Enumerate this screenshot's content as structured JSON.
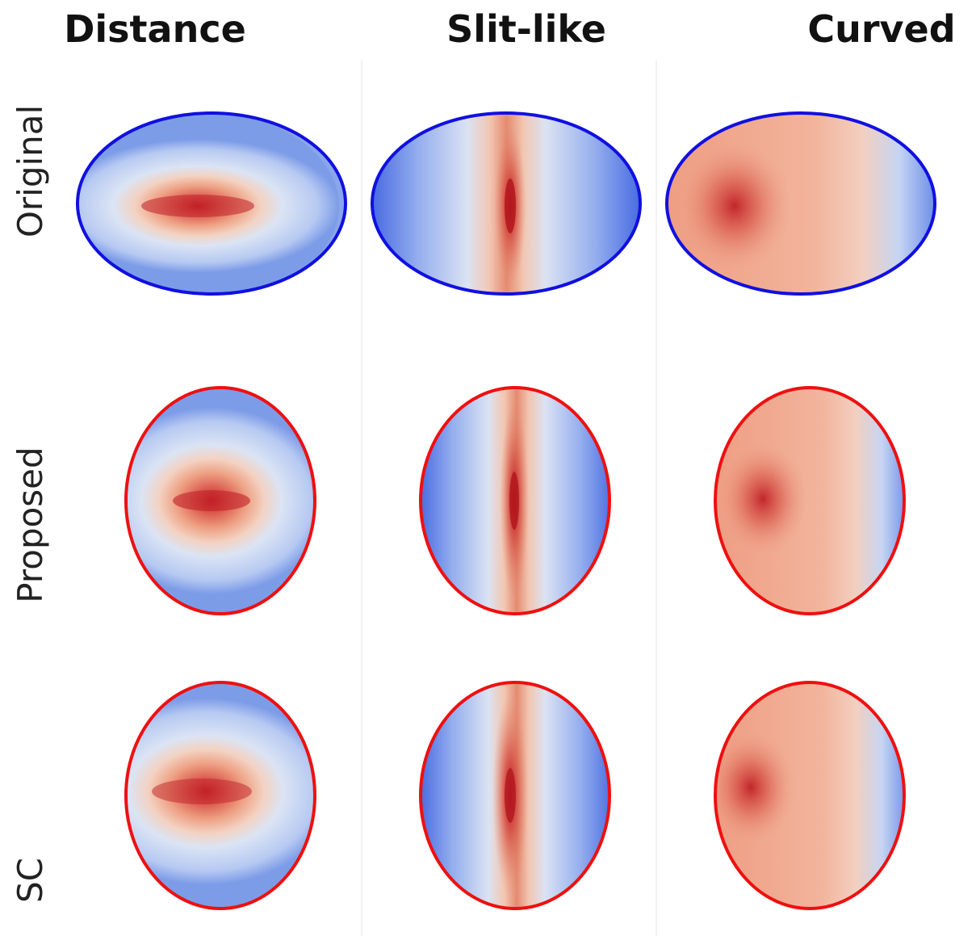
{
  "columns": [
    {
      "label": "Distance"
    },
    {
      "label": "Slit-like"
    },
    {
      "label": "Curved"
    }
  ],
  "rows": [
    {
      "label": "Original",
      "outline_color": "#1010e0"
    },
    {
      "label": "Proposed",
      "outline_color": "#ee1010"
    },
    {
      "label": "SC",
      "outline_color": "#ee1010"
    }
  ],
  "colormap": {
    "low": "#3a5ee0",
    "mid": "#dde6f4",
    "high": "#c81e24"
  },
  "panels": [
    {
      "row": "Original",
      "column": "Distance",
      "pattern": "horizontal-band"
    },
    {
      "row": "Original",
      "column": "Slit-like",
      "pattern": "vertical-slit"
    },
    {
      "row": "Original",
      "column": "Curved",
      "pattern": "left-hotspot"
    },
    {
      "row": "Proposed",
      "column": "Distance",
      "pattern": "horizontal-band"
    },
    {
      "row": "Proposed",
      "column": "Slit-like",
      "pattern": "vertical-slit"
    },
    {
      "row": "Proposed",
      "column": "Curved",
      "pattern": "left-hotspot"
    },
    {
      "row": "SC",
      "column": "Distance",
      "pattern": "horizontal-band"
    },
    {
      "row": "SC",
      "column": "Slit-like",
      "pattern": "vertical-slit"
    },
    {
      "row": "SC",
      "column": "Curved",
      "pattern": "left-hotspot"
    }
  ]
}
